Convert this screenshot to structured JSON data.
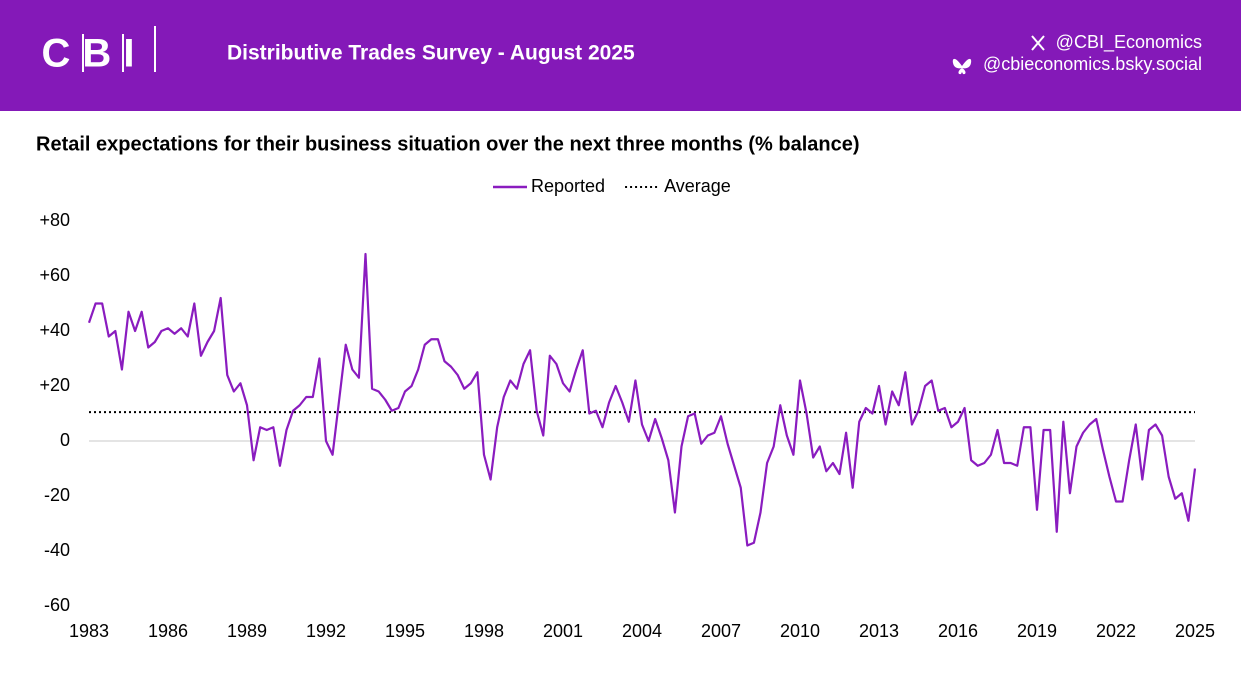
{
  "header": {
    "logo": "CBI",
    "title": "Distributive Trades Survey - August 2025",
    "social": [
      "@CBI_Economics",
      "@cbieconomics.bsky.social"
    ]
  },
  "chart_data": {
    "type": "line",
    "title": "Retail expectations for their business situation over the next three months (% balance)",
    "x": [
      1983,
      1983.25,
      1983.5,
      1983.75,
      1984,
      1984.25,
      1984.5,
      1984.75,
      1985,
      1985.25,
      1985.5,
      1985.75,
      1986,
      1986.25,
      1986.5,
      1986.75,
      1987,
      1987.25,
      1987.5,
      1987.75,
      1988,
      1988.25,
      1988.5,
      1988.75,
      1989,
      1989.25,
      1989.5,
      1989.75,
      1990,
      1990.25,
      1990.5,
      1990.75,
      1991,
      1991.25,
      1991.5,
      1991.75,
      1992,
      1992.25,
      1992.5,
      1992.75,
      1993,
      1993.25,
      1993.5,
      1993.75,
      1994,
      1994.25,
      1994.5,
      1994.75,
      1995,
      1995.25,
      1995.5,
      1995.75,
      1996,
      1996.25,
      1996.5,
      1996.75,
      1997,
      1997.25,
      1997.5,
      1997.75,
      1998,
      1998.25,
      1998.5,
      1998.75,
      1999,
      1999.25,
      1999.5,
      1999.75,
      2000,
      2000.25,
      2000.5,
      2000.75,
      2001,
      2001.25,
      2001.5,
      2001.75,
      2002,
      2002.25,
      2002.5,
      2002.75,
      2003,
      2003.25,
      2003.5,
      2003.75,
      2004,
      2004.25,
      2004.5,
      2004.75,
      2005,
      2005.25,
      2005.5,
      2005.75,
      2006,
      2006.25,
      2006.5,
      2006.75,
      2007,
      2007.25,
      2007.5,
      2007.75,
      2008,
      2008.25,
      2008.5,
      2008.75,
      2009,
      2009.25,
      2009.5,
      2009.75,
      2010,
      2010.25,
      2010.5,
      2010.75,
      2011,
      2011.25,
      2011.5,
      2011.75,
      2012,
      2012.25,
      2012.5,
      2012.75,
      2013,
      2013.25,
      2013.5,
      2013.75,
      2014,
      2014.25,
      2014.5,
      2014.75,
      2015,
      2015.25,
      2015.5,
      2015.75,
      2016,
      2016.25,
      2016.5,
      2016.75,
      2017,
      2017.25,
      2017.5,
      2017.75,
      2018,
      2018.25,
      2018.5,
      2018.75,
      2019,
      2019.25,
      2019.5,
      2019.75,
      2020,
      2020.25,
      2020.5,
      2020.75,
      2021,
      2021.25,
      2021.5,
      2021.75,
      2022,
      2022.25,
      2022.5,
      2022.75,
      2023,
      2023.25,
      2023.5,
      2023.75,
      2024,
      2024.25,
      2024.5,
      2024.75,
      2025
    ],
    "series": [
      {
        "name": "Reported",
        "color": "#8a1cbf",
        "values": [
          43,
          50,
          50,
          38,
          40,
          26,
          47,
          40,
          47,
          34,
          36,
          40,
          41,
          39,
          41,
          38,
          50,
          31,
          36,
          40,
          52,
          24,
          18,
          21,
          13,
          -7,
          5,
          4,
          5,
          -9,
          4,
          11,
          13,
          16,
          16,
          30,
          0,
          -5,
          15,
          35,
          26,
          23,
          68,
          19,
          18,
          15,
          11,
          12,
          18,
          20,
          26,
          35,
          37,
          37,
          29,
          27,
          24,
          19,
          21,
          25,
          -5,
          -14,
          5,
          16,
          22,
          19,
          28,
          33,
          11,
          2,
          31,
          28,
          21,
          18,
          26,
          33,
          10,
          11,
          5,
          14,
          20,
          14,
          7,
          22,
          6,
          0,
          8,
          1,
          -7,
          -26,
          -2,
          9,
          10,
          -1,
          2,
          3,
          9,
          -1,
          -9,
          -17,
          -38,
          -37,
          -26,
          -8,
          -2,
          13,
          2,
          -5,
          22,
          10,
          -6,
          -2,
          -11,
          -8,
          -12,
          3,
          -17,
          7,
          12,
          10,
          20,
          6,
          18,
          13,
          25,
          6,
          11,
          20,
          22,
          11,
          12,
          5,
          7,
          12,
          -7,
          -9,
          -8,
          -5,
          4,
          -8,
          -8,
          -9,
          5,
          5,
          -25,
          4,
          4,
          -33,
          7,
          -19,
          -2,
          3,
          6,
          8,
          -3,
          -13,
          -22,
          -22,
          -7,
          6,
          -14,
          4,
          6,
          2,
          -13,
          -21,
          -19,
          -29,
          -10
        ]
      }
    ],
    "reference_lines": [
      {
        "name": "Average",
        "value": 10.5,
        "color": "#000000"
      }
    ],
    "xlim": [
      1983,
      2025
    ],
    "xticks": [
      1983,
      1986,
      1989,
      1992,
      1995,
      1998,
      2001,
      2004,
      2007,
      2010,
      2013,
      2016,
      2019,
      2022,
      2025
    ],
    "ylim": [
      -60,
      80
    ],
    "yticks": [
      {
        "value": 80,
        "label": "+80"
      },
      {
        "value": 60,
        "label": "+60"
      },
      {
        "value": 40,
        "label": "+40"
      },
      {
        "value": 20,
        "label": "+20"
      },
      0,
      -20,
      -40,
      -60
    ],
    "grid": false
  }
}
